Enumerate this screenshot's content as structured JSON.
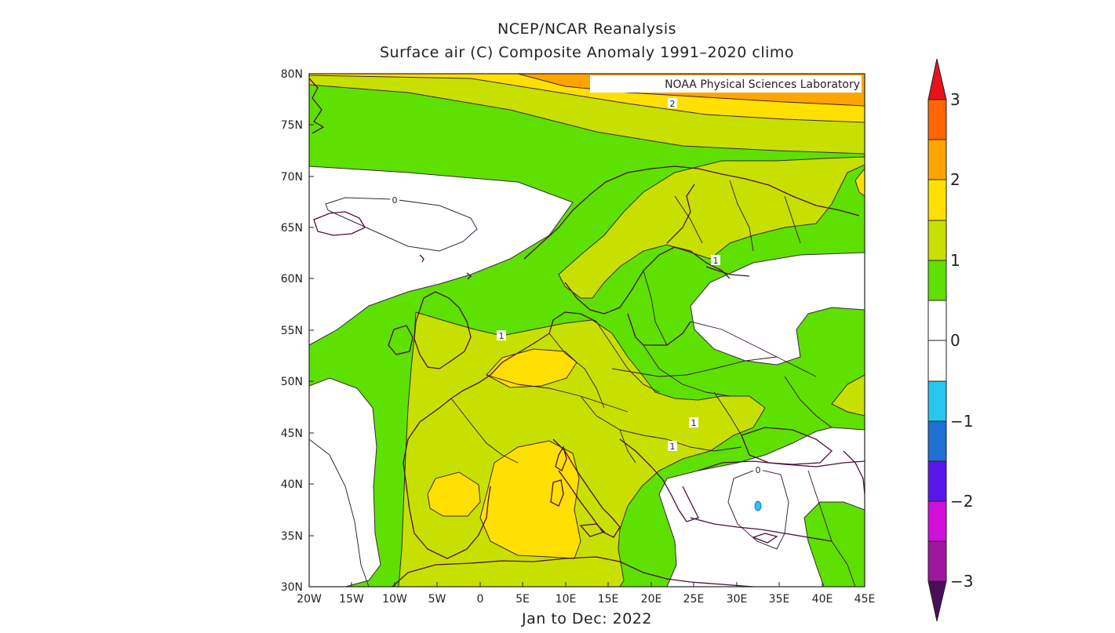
{
  "map": {
    "title_line1": "NCEP/NCAR Reanalysis",
    "title_line2": "Surface air (C) Composite Anomaly 1991–2020 climo",
    "period": "Jan to Dec: 2022",
    "credit": "NOAA Physical Sciences Laboratory",
    "variable": "Surface air temperature anomaly",
    "units": "C"
  },
  "axes": {
    "lat_ticks": [
      "30N",
      "35N",
      "40N",
      "45N",
      "50N",
      "55N",
      "60N",
      "65N",
      "70N",
      "75N",
      "80N"
    ],
    "lon_ticks": [
      "20W",
      "15W",
      "10W",
      "5W",
      "0",
      "5E",
      "10E",
      "15E",
      "20E",
      "25E",
      "30E",
      "35E",
      "40E",
      "45E"
    ]
  },
  "contour_labels": [
    "0",
    "1",
    "1",
    "1",
    "1",
    "2",
    "0"
  ],
  "colorbar": {
    "labels": [
      "3",
      "2",
      "1",
      "0",
      "−1",
      "−2",
      "−3"
    ],
    "colors": {
      "above_2_5": "#ff6600",
      "2_to_2_5": "#ffa500",
      "1_5_to_2": "#ffe000",
      "1_to_1_5": "#c8e000",
      "0_5_to_1": "#5ee000",
      "neg_0_5_to_0_5": "#ffffff",
      "neg_1_to_neg_0_5": "#26c6ef",
      "neg_1_5_to_neg_1": "#1f6fd4",
      "neg_2_to_neg_1_5": "#5a16e8",
      "neg_2_5_to_neg_2": "#d10fd9",
      "neg_3_to_neg_2_5": "#a0179f",
      "below_neg_3": "#4a0f5a",
      "top_arrow": "#e8121a"
    }
  }
}
